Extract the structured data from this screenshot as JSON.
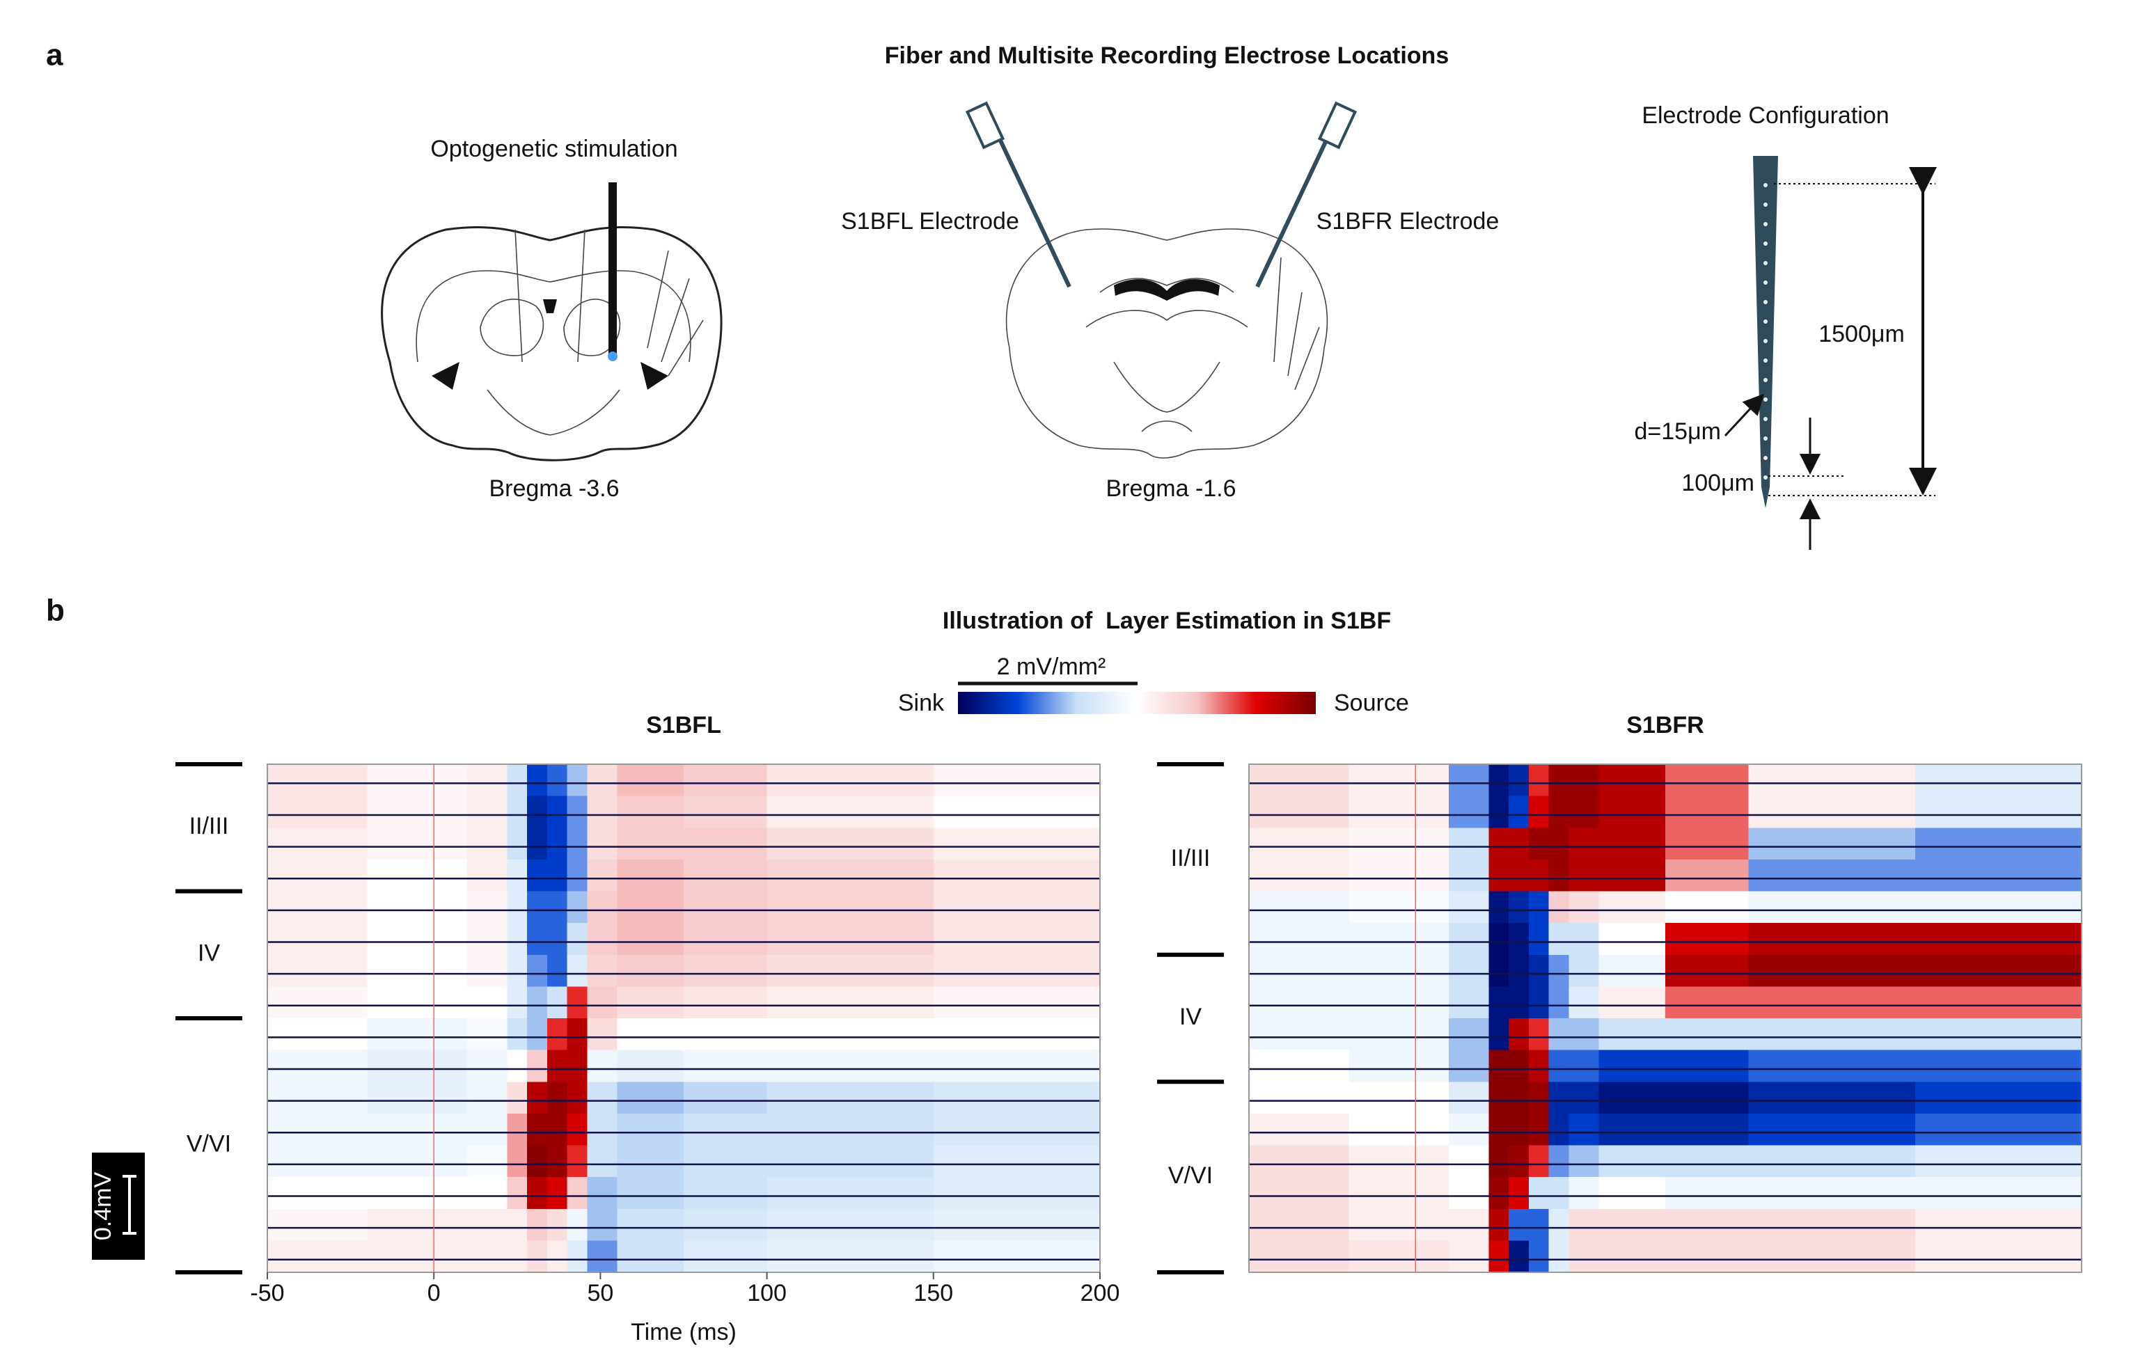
{
  "panel_a": {
    "label": "a",
    "title": "Fiber and Multisite Recording Electrose Locations",
    "stimulation": "Optogenetic stimulation",
    "bregma_left": "Bregma -3.6",
    "left_electrode": "S1BFL Electrode",
    "right_electrode": "S1BFR Electrode",
    "bregma_right": "Bregma -1.6",
    "config_title": "Electrode Configuration",
    "length": "1500μm",
    "diameter": "d=15μm",
    "spacing": "100μm"
  },
  "panel_b": {
    "label": "b",
    "title": "Illustration of  Layer Estimation in S1BF",
    "colorbar_scale": "2 mV/mm²",
    "colorbar_low": "Sink",
    "colorbar_high": "Source",
    "voltage_scale": "0.4mV"
  },
  "chart_data": [
    {
      "type": "heatmap",
      "title": "S1BFL",
      "xlabel": "Time (ms)",
      "xlim": [
        -50,
        200
      ],
      "xticks": [
        -50,
        0,
        50,
        100,
        150,
        200
      ],
      "stimulus_ms": 0,
      "clim": [
        -1,
        1
      ],
      "colormap": [
        "#00005a",
        "#0044d8",
        "#c9e0f7",
        "#ffffff",
        "#f7c6c6",
        "#e00000",
        "#7a0000"
      ],
      "bins": [
        -50,
        -20,
        10,
        22,
        28,
        34,
        40,
        46,
        55,
        75,
        100,
        150,
        200
      ],
      "layers": [
        {
          "label": "II/III",
          "rows": 4
        },
        {
          "label": "IV",
          "rows": 4
        },
        {
          "label": "V/VI",
          "rows": 8
        }
      ],
      "z": [
        [
          0.15,
          0.05,
          0.1,
          -0.3,
          -0.7,
          -0.6,
          -0.4,
          0.2,
          0.35,
          0.3,
          0.15,
          0.05
        ],
        [
          0.15,
          0.05,
          0.1,
          -0.3,
          -0.8,
          -0.7,
          -0.5,
          0.2,
          0.3,
          0.25,
          0.1,
          0.0
        ],
        [
          0.1,
          0.05,
          0.1,
          -0.3,
          -0.8,
          -0.7,
          -0.5,
          0.2,
          0.3,
          0.3,
          0.2,
          0.1
        ],
        [
          0.1,
          0.0,
          0.1,
          -0.2,
          -0.7,
          -0.7,
          -0.5,
          0.25,
          0.35,
          0.3,
          0.25,
          0.15
        ],
        [
          0.1,
          0.0,
          0.05,
          -0.2,
          -0.6,
          -0.6,
          -0.4,
          0.3,
          0.35,
          0.3,
          0.25,
          0.15
        ],
        [
          0.1,
          0.0,
          0.05,
          -0.2,
          -0.6,
          -0.6,
          -0.3,
          0.3,
          0.35,
          0.3,
          0.25,
          0.15
        ],
        [
          0.1,
          0.0,
          0.05,
          -0.2,
          -0.5,
          -0.6,
          -0.2,
          0.25,
          0.3,
          0.25,
          0.2,
          0.15
        ],
        [
          0.05,
          0.0,
          0.0,
          -0.2,
          -0.4,
          -0.3,
          0.6,
          0.3,
          0.2,
          0.15,
          0.1,
          0.05
        ],
        [
          0.0,
          -0.1,
          -0.05,
          -0.3,
          -0.4,
          0.6,
          0.8,
          0.2,
          0.0,
          0.0,
          0.0,
          0.0
        ],
        [
          -0.1,
          -0.15,
          -0.1,
          0.0,
          0.3,
          0.8,
          0.8,
          -0.1,
          -0.15,
          -0.1,
          -0.1,
          -0.1
        ],
        [
          -0.1,
          -0.15,
          -0.1,
          0.2,
          0.8,
          0.9,
          0.8,
          -0.3,
          -0.4,
          -0.35,
          -0.3,
          -0.25
        ],
        [
          -0.1,
          -0.1,
          -0.1,
          0.4,
          0.9,
          0.9,
          0.7,
          -0.3,
          -0.35,
          -0.3,
          -0.3,
          -0.25
        ],
        [
          -0.1,
          -0.1,
          -0.05,
          0.4,
          0.95,
          0.9,
          0.6,
          -0.3,
          -0.35,
          -0.3,
          -0.3,
          -0.2
        ],
        [
          0.0,
          0.0,
          0.0,
          0.3,
          0.8,
          0.7,
          0.3,
          -0.4,
          -0.35,
          -0.3,
          -0.25,
          -0.2
        ],
        [
          0.05,
          0.1,
          0.1,
          0.1,
          0.3,
          0.2,
          -0.1,
          -0.4,
          -0.3,
          -0.25,
          -0.2,
          -0.15
        ],
        [
          0.1,
          0.1,
          0.1,
          0.1,
          0.2,
          0.1,
          -0.2,
          -0.5,
          -0.3,
          -0.2,
          -0.15,
          -0.1
        ]
      ]
    },
    {
      "type": "heatmap",
      "title": "S1BFR",
      "xlim": [
        -50,
        200
      ],
      "stimulus_ms": 0,
      "clim": [
        -1,
        1
      ],
      "colormap": [
        "#00005a",
        "#0044d8",
        "#c9e0f7",
        "#ffffff",
        "#f7c6c6",
        "#e00000",
        "#7a0000"
      ],
      "bins": [
        -50,
        -20,
        10,
        22,
        28,
        34,
        40,
        46,
        55,
        75,
        100,
        150,
        200
      ],
      "layers": [
        {
          "label": "II/III",
          "rows": 6
        },
        {
          "label": "IV",
          "rows": 4
        },
        {
          "label": "V/VI",
          "rows": 6
        }
      ],
      "z": [
        [
          0.2,
          0.1,
          -0.5,
          -0.9,
          -0.8,
          0.6,
          0.9,
          0.9,
          0.8,
          0.5,
          0.1,
          -0.2
        ],
        [
          0.2,
          0.1,
          -0.5,
          -0.9,
          -0.7,
          0.7,
          0.9,
          0.9,
          0.8,
          0.5,
          0.1,
          -0.2
        ],
        [
          0.1,
          0.05,
          -0.3,
          0.8,
          0.8,
          0.9,
          0.9,
          0.8,
          0.8,
          0.5,
          -0.4,
          -0.5
        ],
        [
          0.1,
          0.05,
          -0.3,
          0.8,
          0.8,
          0.8,
          0.9,
          0.8,
          0.8,
          0.4,
          -0.5,
          -0.5
        ],
        [
          -0.1,
          -0.05,
          -0.2,
          -0.9,
          -0.8,
          -0.7,
          0.3,
          0.2,
          0.1,
          0.0,
          -0.1,
          -0.1
        ],
        [
          -0.1,
          -0.1,
          -0.3,
          -0.95,
          -0.9,
          -0.7,
          -0.3,
          -0.3,
          0.0,
          0.7,
          0.8,
          0.8
        ],
        [
          -0.1,
          -0.1,
          -0.3,
          -0.95,
          -0.9,
          -0.8,
          -0.5,
          -0.3,
          -0.1,
          0.8,
          0.9,
          0.9
        ],
        [
          -0.1,
          -0.1,
          -0.3,
          -0.9,
          -0.9,
          -0.8,
          -0.5,
          -0.2,
          0.1,
          0.5,
          0.5,
          0.5
        ],
        [
          -0.1,
          -0.1,
          -0.4,
          -0.9,
          0.8,
          0.6,
          -0.4,
          -0.4,
          -0.3,
          -0.3,
          -0.3,
          -0.3
        ],
        [
          0.0,
          -0.1,
          -0.4,
          0.95,
          0.95,
          0.8,
          -0.6,
          -0.6,
          -0.7,
          -0.7,
          -0.6,
          -0.6
        ],
        [
          0.0,
          0.0,
          -0.2,
          0.95,
          0.95,
          0.9,
          -0.8,
          -0.8,
          -0.9,
          -0.9,
          -0.8,
          -0.7
        ],
        [
          0.1,
          0.0,
          -0.1,
          0.95,
          0.95,
          0.9,
          -0.8,
          -0.7,
          -0.8,
          -0.8,
          -0.7,
          -0.6
        ],
        [
          0.2,
          0.1,
          0.0,
          0.95,
          0.9,
          0.6,
          -0.5,
          -0.4,
          -0.3,
          -0.3,
          -0.3,
          -0.2
        ],
        [
          0.2,
          0.1,
          0.0,
          0.9,
          0.7,
          -0.3,
          -0.3,
          -0.1,
          0.0,
          -0.1,
          -0.1,
          -0.1
        ],
        [
          0.2,
          0.1,
          0.1,
          0.8,
          -0.6,
          -0.6,
          -0.2,
          0.2,
          0.2,
          0.2,
          0.2,
          0.1
        ],
        [
          0.2,
          0.15,
          0.1,
          0.7,
          -0.9,
          -0.6,
          -0.2,
          0.2,
          0.2,
          0.2,
          0.2,
          0.1
        ]
      ]
    }
  ]
}
